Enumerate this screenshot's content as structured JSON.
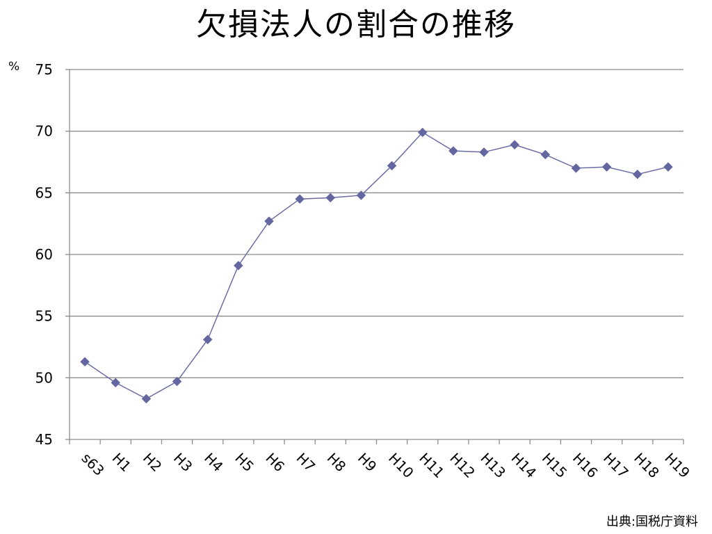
{
  "title": "欠損法人の割合の推移",
  "unit": "%",
  "source": "出典:国税庁資料",
  "colors": {
    "series": "#6b6ba6",
    "marker": "#6466a0",
    "grid": "#8c8c8c",
    "axis": "#8c8c8c"
  },
  "chart_data": {
    "type": "line",
    "title": "欠損法人の割合の推移",
    "xlabel": "",
    "ylabel": "%",
    "ylim": [
      45,
      75
    ],
    "yticks": [
      45,
      50,
      55,
      60,
      65,
      70,
      75
    ],
    "grid": true,
    "legend": "none",
    "marker": "diamond",
    "categories": [
      "s63",
      "H1",
      "H2",
      "H3",
      "H4",
      "H5",
      "H6",
      "H7",
      "H8",
      "H9",
      "H10",
      "H11",
      "H12",
      "H13",
      "H14",
      "H15",
      "H16",
      "H17",
      "H18",
      "H19"
    ],
    "series": [
      {
        "values": [
          51.3,
          49.6,
          48.3,
          49.7,
          53.1,
          59.1,
          62.7,
          64.5,
          64.6,
          64.8,
          67.2,
          69.9,
          68.4,
          68.3,
          68.9,
          68.1,
          67.0,
          67.1,
          66.5,
          67.1
        ]
      }
    ]
  }
}
